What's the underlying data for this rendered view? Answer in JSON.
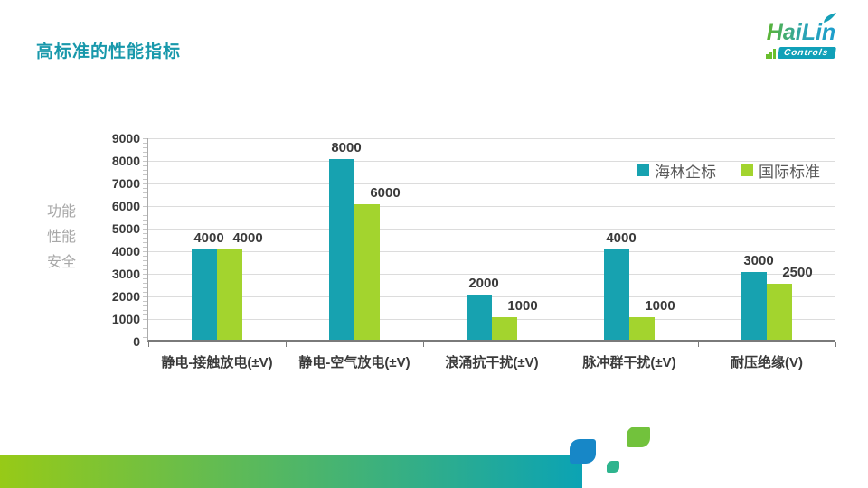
{
  "header": {
    "title": "高标准的性能指标",
    "title_color": "#1898ab"
  },
  "logo": {
    "brand": "HaiLin",
    "sub": "Controls",
    "sub_box_color": "#10a0b8",
    "bars_color": "#6abf2e",
    "leaf_color": "#16a0b8"
  },
  "chart_data": {
    "type": "bar",
    "title": "",
    "ylabel_lines": [
      "功能",
      "性能",
      "安全"
    ],
    "categories": [
      "静电-接触放电(±V)",
      "静电-空气放电(±V)",
      "浪涌抗干扰(±V)",
      "脉冲群干扰(±V)",
      "耐压绝缘(V)"
    ],
    "series": [
      {
        "name": "海林企标",
        "color": "#17a2b0",
        "values": [
          4000,
          8000,
          2000,
          4000,
          3000
        ]
      },
      {
        "name": "国际标准",
        "color": "#a3d42e",
        "values": [
          4000,
          6000,
          1000,
          1000,
          2500
        ]
      }
    ],
    "ylim": [
      0,
      9000
    ],
    "ytick_step": 1000,
    "grid": true,
    "legend_position": "top-right"
  },
  "decoration": {
    "gradient_from": "#97ca17",
    "gradient_to": "#0ba3b4",
    "squares": [
      {
        "name": "blue-square",
        "color": "#1787c7"
      },
      {
        "name": "teal-square",
        "color": "#2eb48e"
      },
      {
        "name": "green-square",
        "color": "#72c23c"
      }
    ]
  }
}
